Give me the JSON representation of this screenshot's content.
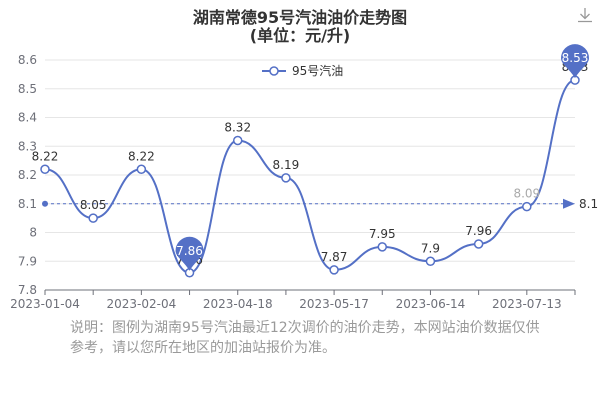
{
  "title": "湖南常德95号汽油油价走势图",
  "subtitle": "(单位：元/升)",
  "note": "说明：图例为湖南95号汽油最近12次调价的油价走势，本网站油价数据仅供参考，请以您所在地区的加油站报价为准。",
  "chart_data": {
    "type": "line",
    "title": "湖南常德95号汽油油价走势图",
    "subtitle": "(单位：元/升)",
    "legend": {
      "position": "top-center"
    },
    "x_tick_labels": [
      "2023-01-04",
      "2023-02-04",
      "2023-04-18",
      "2023-05-17",
      "2023-06-14",
      "2023-07-13"
    ],
    "y_ticks": [
      7.8,
      7.9,
      8,
      8.1,
      8.2,
      8.3,
      8.4,
      8.5,
      8.6
    ],
    "ylim": [
      7.8,
      8.6
    ],
    "grid": true,
    "series": [
      {
        "name": "95号汽油",
        "color": "#5470c6",
        "values": [
          8.22,
          8.05,
          8.22,
          7.86,
          8.32,
          8.19,
          7.87,
          7.95,
          7.9,
          7.96,
          8.09,
          8.53
        ],
        "value_labels": [
          "8.22",
          "8.05",
          "8.22",
          "7.86",
          "8.32",
          "8.19",
          "7.87",
          "7.95",
          "7.9",
          "7.96",
          "8.09",
          "8.53"
        ]
      }
    ],
    "markers": {
      "max": {
        "label": "8.53",
        "index": 11
      },
      "min": {
        "label": "7.86",
        "index": 3
      }
    },
    "average_line": {
      "value": 8.1,
      "label": "8.1"
    }
  }
}
